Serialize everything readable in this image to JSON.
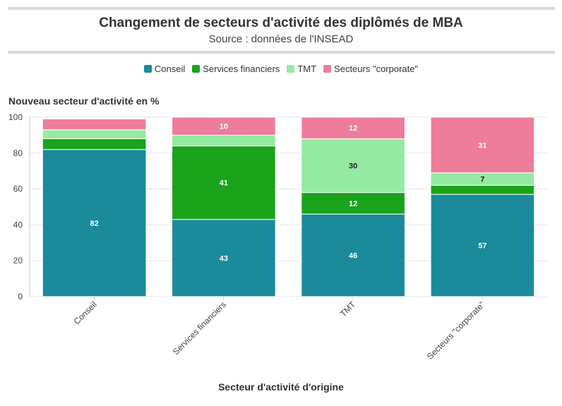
{
  "chart_data": {
    "type": "bar",
    "stacked": true,
    "title": "Changement de secteurs d'activité des diplômés de MBA",
    "subtitle": "Source : données de l'INSEAD",
    "xlabel": "Secteur d'activité d'origine",
    "ylabel": "Nouveau secteur d'activité en %",
    "ylim": [
      0,
      100
    ],
    "yticks": [
      "0",
      "20",
      "40",
      "60",
      "80",
      "100"
    ],
    "grid": true,
    "legend_position": "top-center",
    "categories": [
      "Conseil",
      "Services financiers",
      "TMT",
      "Secteurs \"corporate\""
    ],
    "series": [
      {
        "name": "Conseil",
        "color": "#1b8a9a",
        "values": [
          82,
          43,
          46,
          57
        ],
        "labels": [
          "82",
          "43",
          "46",
          "57"
        ],
        "label_color": "#ffffff"
      },
      {
        "name": "Services financiers",
        "color": "#1ba31b",
        "values": [
          6,
          41,
          12,
          5
        ],
        "labels": [
          "",
          "41",
          "12",
          ""
        ],
        "label_color": "#ffffff"
      },
      {
        "name": "TMT",
        "color": "#95eaa1",
        "values": [
          5,
          6,
          30,
          7
        ],
        "labels": [
          "",
          "",
          "30",
          "7"
        ],
        "label_color": "#222222"
      },
      {
        "name": "Secteurs \"corporate\"",
        "color": "#ed7d9a",
        "values": [
          6,
          10,
          12,
          31
        ],
        "labels": [
          "",
          "10",
          "12",
          "31"
        ],
        "label_color": "#ffffff"
      }
    ]
  }
}
